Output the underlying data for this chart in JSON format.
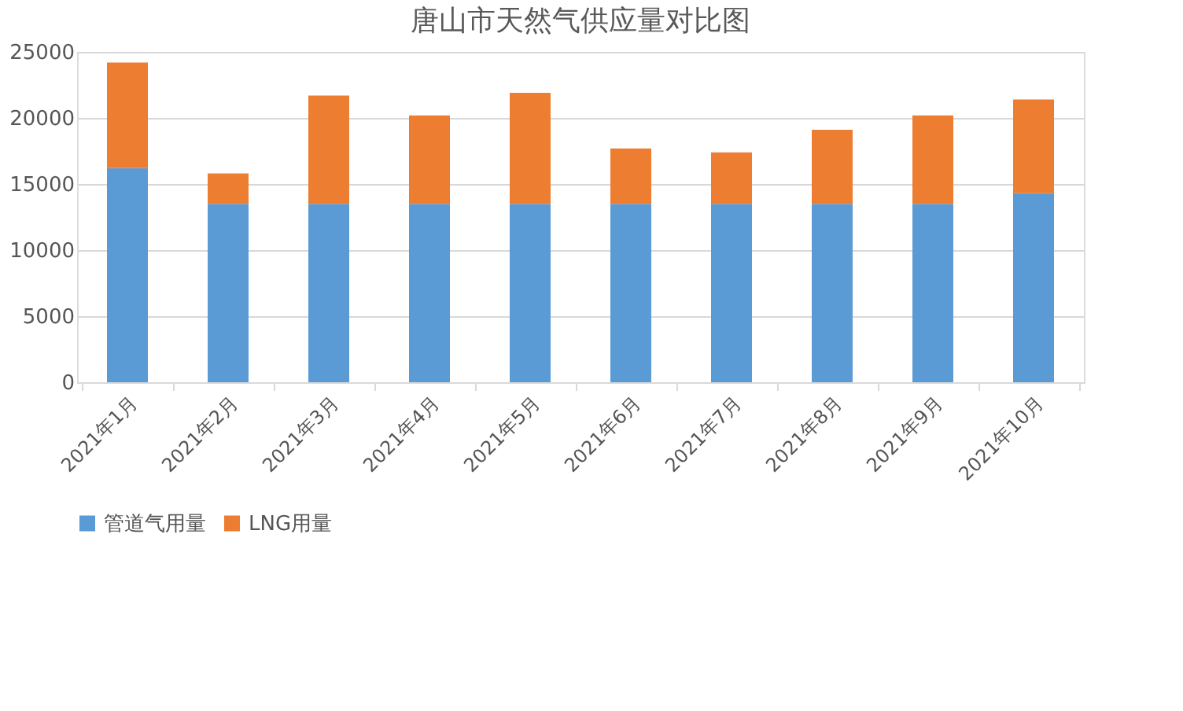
{
  "chart_data": {
    "type": "bar",
    "title": "唐山市天然气供应量对比图",
    "stacked": true,
    "categories": [
      "2021年1月",
      "2021年2月",
      "2021年3月",
      "2021年4月",
      "2021年5月",
      "2021年6月",
      "2021年7月",
      "2021年8月",
      "2021年9月",
      "2021年10月"
    ],
    "series": [
      {
        "name": "管道气用量",
        "color": "#5b9bd5",
        "values": [
          16200,
          13500,
          13500,
          13500,
          13500,
          13500,
          13500,
          13500,
          13500,
          14300
        ]
      },
      {
        "name": "LNG用量",
        "color": "#ed7d31",
        "values": [
          8000,
          2300,
          8200,
          6700,
          8400,
          4200,
          3900,
          5600,
          6700,
          7100
        ]
      }
    ],
    "ylim": [
      0,
      25000
    ],
    "yticks": [
      0,
      5000,
      10000,
      15000,
      20000,
      25000
    ],
    "grid": "y",
    "legend": "bottom"
  }
}
